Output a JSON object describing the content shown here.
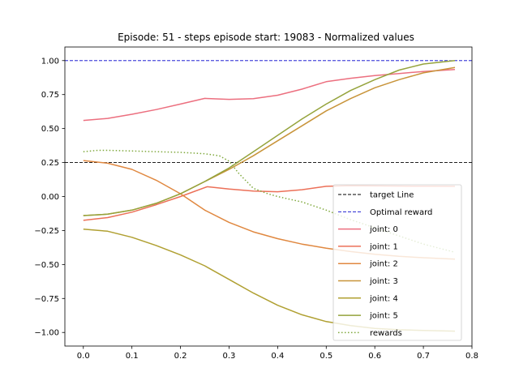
{
  "chart_data": {
    "type": "line",
    "title": "Episode: 51 - steps episode start: 19083 - Normalized values",
    "xlabel": "",
    "ylabel": "",
    "xlim": [
      -0.038,
      0.8
    ],
    "ylim": [
      -1.1,
      1.1
    ],
    "xticks": [
      0.0,
      0.1,
      0.2,
      0.3,
      0.4,
      0.5,
      0.6,
      0.7,
      0.8
    ],
    "xtick_labels": [
      "0.0",
      "0.1",
      "0.2",
      "0.3",
      "0.4",
      "0.5",
      "0.6",
      "0.7",
      "0.8"
    ],
    "yticks": [
      1.0,
      0.75,
      0.5,
      0.25,
      0.0,
      -0.25,
      -0.5,
      -0.75,
      -1.0
    ],
    "ytick_labels": [
      "1.00",
      "0.75",
      "0.50",
      "0.25",
      "0.00",
      "−0.25",
      "−0.50",
      "−0.75",
      "−1.00"
    ],
    "grid": false,
    "legend_position": "lower right",
    "hlines": [
      {
        "name": "target Line",
        "y": 0.25,
        "color": "#000000",
        "dash": "dashed"
      },
      {
        "name": "Optimal reward",
        "y": 1.0,
        "color": "#0000cc",
        "dash": "dashed"
      }
    ],
    "series": [
      {
        "name": "joint: 0",
        "color": "#ec6f7f",
        "dash": "solid",
        "x": [
          0.0,
          0.05,
          0.1,
          0.15,
          0.2,
          0.25,
          0.3,
          0.35,
          0.4,
          0.45,
          0.5,
          0.55,
          0.6,
          0.65,
          0.7,
          0.765
        ],
        "y": [
          0.56,
          0.575,
          0.605,
          0.64,
          0.68,
          0.722,
          0.715,
          0.72,
          0.745,
          0.79,
          0.845,
          0.87,
          0.89,
          0.905,
          0.92,
          0.935
        ]
      },
      {
        "name": "joint: 1",
        "color": "#ec7058",
        "dash": "solid",
        "x": [
          0.0,
          0.05,
          0.1,
          0.15,
          0.2,
          0.255,
          0.3,
          0.35,
          0.4,
          0.45,
          0.5,
          0.55,
          0.6,
          0.65,
          0.7,
          0.765
        ],
        "y": [
          -0.175,
          -0.155,
          -0.115,
          -0.06,
          0.0,
          0.072,
          0.055,
          0.04,
          0.035,
          0.05,
          0.075,
          0.08,
          0.078,
          0.077,
          0.076,
          0.075
        ]
      },
      {
        "name": "joint: 2",
        "color": "#e08840",
        "dash": "solid",
        "x": [
          0.0,
          0.05,
          0.1,
          0.15,
          0.2,
          0.25,
          0.3,
          0.35,
          0.4,
          0.45,
          0.5,
          0.55,
          0.6,
          0.65,
          0.7,
          0.765
        ],
        "y": [
          0.265,
          0.245,
          0.2,
          0.12,
          0.02,
          -0.1,
          -0.19,
          -0.26,
          -0.31,
          -0.35,
          -0.38,
          -0.405,
          -0.425,
          -0.44,
          -0.45,
          -0.46
        ]
      },
      {
        "name": "joint: 3",
        "color": "#c8943a",
        "dash": "solid",
        "x": [
          0.0,
          0.05,
          0.1,
          0.15,
          0.2,
          0.25,
          0.3,
          0.35,
          0.4,
          0.45,
          0.5,
          0.55,
          0.6,
          0.65,
          0.7,
          0.765
        ],
        "y": [
          -0.14,
          -0.13,
          -0.1,
          -0.05,
          0.02,
          0.11,
          0.2,
          0.3,
          0.41,
          0.52,
          0.63,
          0.72,
          0.8,
          0.86,
          0.91,
          0.95
        ]
      },
      {
        "name": "joint: 4",
        "color": "#b0a032",
        "dash": "solid",
        "x": [
          0.0,
          0.05,
          0.1,
          0.15,
          0.2,
          0.25,
          0.3,
          0.35,
          0.4,
          0.45,
          0.5,
          0.55,
          0.6,
          0.65,
          0.7,
          0.765
        ],
        "y": [
          -0.24,
          -0.255,
          -0.3,
          -0.36,
          -0.43,
          -0.51,
          -0.61,
          -0.71,
          -0.8,
          -0.87,
          -0.92,
          -0.95,
          -0.97,
          -0.98,
          -0.985,
          -0.99
        ]
      },
      {
        "name": "joint: 5",
        "color": "#95a33c",
        "dash": "solid",
        "x": [
          0.0,
          0.05,
          0.1,
          0.15,
          0.2,
          0.25,
          0.3,
          0.35,
          0.4,
          0.45,
          0.5,
          0.55,
          0.6,
          0.65,
          0.7,
          0.765
        ],
        "y": [
          -0.14,
          -0.13,
          -0.1,
          -0.05,
          0.02,
          0.11,
          0.21,
          0.33,
          0.45,
          0.57,
          0.68,
          0.78,
          0.86,
          0.93,
          0.975,
          1.0
        ]
      },
      {
        "name": "rewards",
        "color": "#7fa83c",
        "dash": "dotted",
        "x": [
          0.0,
          0.03,
          0.05,
          0.1,
          0.15,
          0.2,
          0.25,
          0.28,
          0.3,
          0.32,
          0.35,
          0.38,
          0.4,
          0.45,
          0.5,
          0.55,
          0.6,
          0.65,
          0.7,
          0.765
        ],
        "y": [
          0.33,
          0.34,
          0.34,
          0.335,
          0.33,
          0.325,
          0.315,
          0.3,
          0.26,
          0.17,
          0.06,
          0.02,
          0.0,
          -0.04,
          -0.1,
          -0.17,
          -0.23,
          -0.29,
          -0.35,
          -0.41
        ]
      }
    ]
  }
}
